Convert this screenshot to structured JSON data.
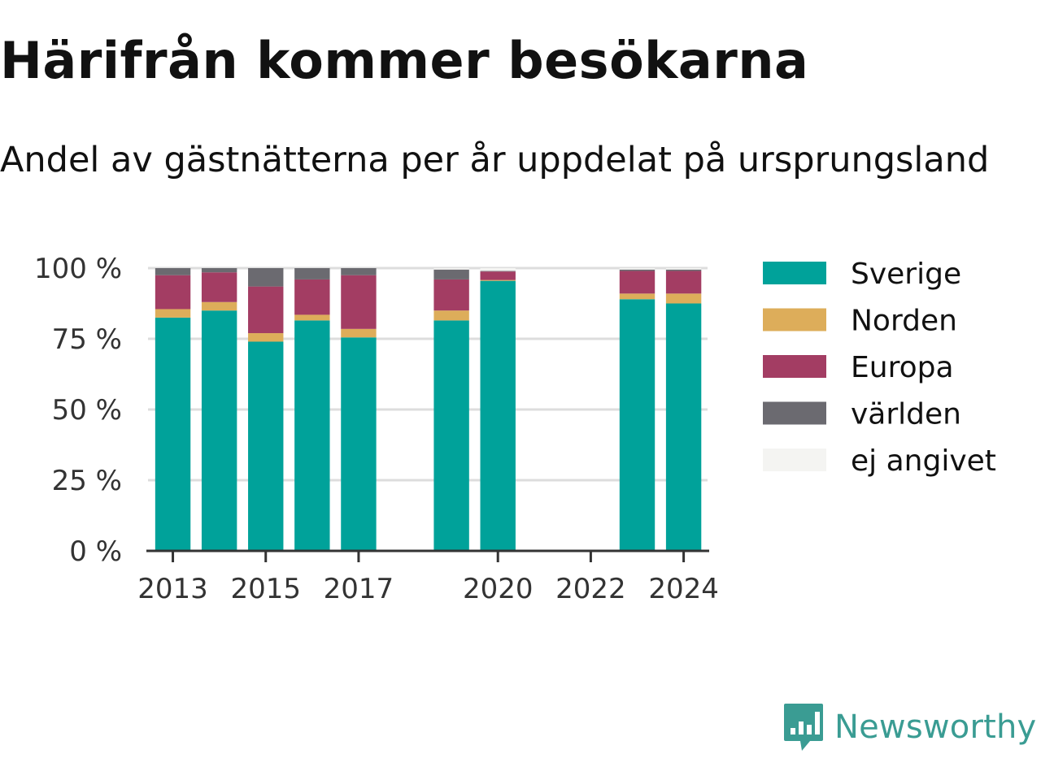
{
  "title": "Härifrån kommer besökarna",
  "subtitle": "Andel av gästnätterna per år uppdelat på ursprungsland",
  "brand": {
    "name": "Newsworthy",
    "color": "#3a9c93"
  },
  "chart_data": {
    "type": "bar",
    "stacked": true,
    "categories": [
      "2013",
      "2014",
      "2015",
      "2016",
      "2017",
      "2018",
      "2019",
      "2020",
      "2021",
      "2022",
      "2023",
      "2024"
    ],
    "x_tick_labels": [
      "2013",
      "2015",
      "2017",
      "2020",
      "2022",
      "2024"
    ],
    "y_tick_labels": [
      "0 %",
      "25 %",
      "50 %",
      "75 %",
      "100 %"
    ],
    "y_ticks": [
      0,
      25,
      50,
      75,
      100
    ],
    "ylim": [
      0,
      100
    ],
    "grid": true,
    "legend_position": "right",
    "series": [
      {
        "name": "Sverige",
        "color": "#00a29a",
        "values": [
          82.5,
          85,
          74,
          81.5,
          75.5,
          null,
          81.5,
          95.5,
          null,
          null,
          89,
          87.5
        ]
      },
      {
        "name": "Norden",
        "color": "#ddad5a",
        "values": [
          3,
          3,
          3,
          2,
          3,
          null,
          3.5,
          0.3,
          null,
          null,
          2,
          3.5
        ]
      },
      {
        "name": "Europa",
        "color": "#a33d63",
        "values": [
          12,
          10.5,
          16.5,
          12.5,
          19,
          null,
          11,
          3,
          null,
          null,
          8,
          8
        ]
      },
      {
        "name": "världen",
        "color": "#6b6a70",
        "values": [
          2.5,
          1.5,
          6.5,
          4,
          2.5,
          null,
          3.5,
          0.2,
          null,
          null,
          0.5,
          0.5
        ]
      },
      {
        "name": "ej angivet",
        "color": "#f4f4f2",
        "values": [
          0,
          0,
          0,
          0,
          0,
          null,
          0.5,
          1,
          null,
          null,
          0.5,
          0.5
        ]
      }
    ]
  }
}
